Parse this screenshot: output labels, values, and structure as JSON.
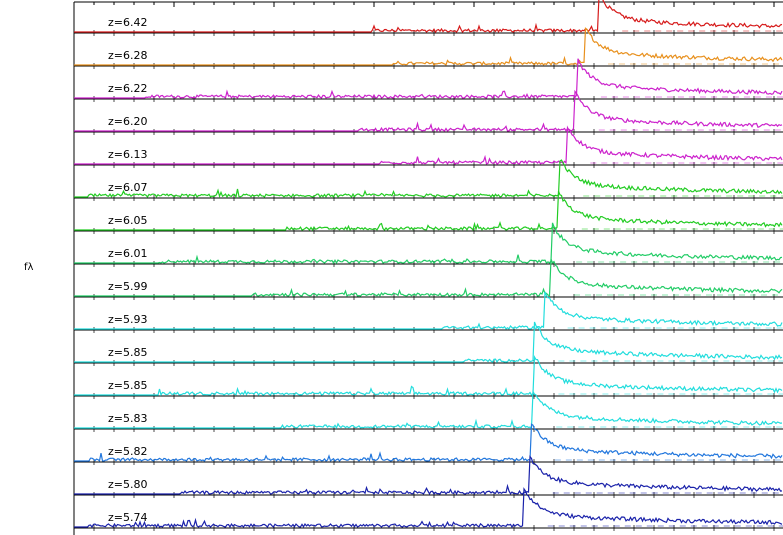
{
  "chart_data": {
    "type": "line",
    "title": "",
    "xlabel": "",
    "ylabel": "fλ",
    "grid": false,
    "legend": "none",
    "panels": [
      {
        "label": "z=6.42",
        "z": 6.42,
        "color": "#d61a1a",
        "edge_frac": 0.745,
        "noise_start_frac": 0.42
      },
      {
        "label": "z=6.28",
        "z": 6.28,
        "color": "#e8901d",
        "edge_frac": 0.725,
        "noise_start_frac": 0.45
      },
      {
        "label": "z=6.22",
        "z": 6.22,
        "color": "#cc22cc",
        "edge_frac": 0.715,
        "noise_start_frac": 0.1
      },
      {
        "label": "z=6.20",
        "z": 6.2,
        "color": "#cc22cc",
        "edge_frac": 0.712,
        "noise_start_frac": 0.4
      },
      {
        "label": "z=6.13",
        "z": 6.13,
        "color": "#cc22cc",
        "edge_frac": 0.7,
        "noise_start_frac": 0.43
      },
      {
        "label": "z=6.07",
        "z": 6.07,
        "color": "#22cc22",
        "edge_frac": 0.69,
        "noise_start_frac": 0.02
      },
      {
        "label": "z=6.05",
        "z": 6.05,
        "color": "#22cc22",
        "edge_frac": 0.688,
        "noise_start_frac": 0.3
      },
      {
        "label": "z=6.01",
        "z": 6.01,
        "color": "#22cc66",
        "edge_frac": 0.68,
        "noise_start_frac": 0.12
      },
      {
        "label": "z=5.99",
        "z": 5.99,
        "color": "#22cc66",
        "edge_frac": 0.677,
        "noise_start_frac": 0.25
      },
      {
        "label": "z=5.93",
        "z": 5.93,
        "color": "#22dddd",
        "edge_frac": 0.668,
        "noise_start_frac": 0.52
      },
      {
        "label": "z=5.85",
        "z": 5.85,
        "color": "#22dddd",
        "edge_frac": 0.655,
        "noise_start_frac": 0.55
      },
      {
        "label": "z=5.85",
        "z": 5.85,
        "color": "#22dddd",
        "edge_frac": 0.655,
        "noise_start_frac": 0.12
      },
      {
        "label": "z=5.83",
        "z": 5.83,
        "color": "#22dddd",
        "edge_frac": 0.652,
        "noise_start_frac": 0.29
      },
      {
        "label": "z=5.82",
        "z": 5.82,
        "color": "#2277dd",
        "edge_frac": 0.65,
        "noise_start_frac": 0.02
      },
      {
        "label": "z=5.80",
        "z": 5.8,
        "color": "#1a22aa",
        "edge_frac": 0.647,
        "noise_start_frac": 0.15
      },
      {
        "label": "z=5.74",
        "z": 5.74,
        "color": "#1a22aa",
        "edge_frac": 0.64,
        "noise_start_frac": 0.02
      }
    ]
  }
}
